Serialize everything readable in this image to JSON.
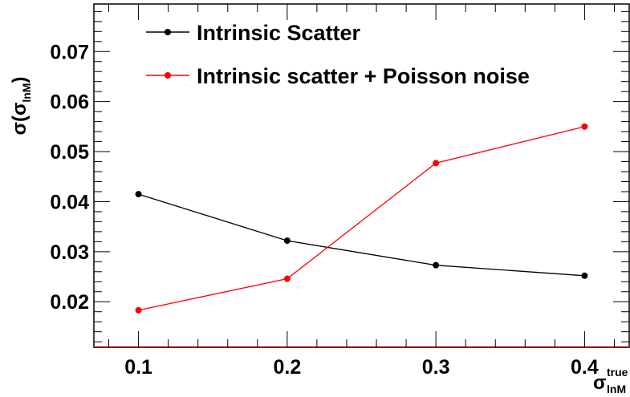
{
  "chart_data": {
    "type": "line",
    "x": [
      0.1,
      0.2,
      0.3,
      0.4
    ],
    "xlim": [
      0.07,
      0.43
    ],
    "ylim": [
      0.0109,
      0.0795
    ],
    "x_ticks": [
      "0.1",
      "0.2",
      "0.3",
      "0.4"
    ],
    "y_ticks": [
      "0.02",
      "0.03",
      "0.04",
      "0.05",
      "0.06",
      "0.07"
    ],
    "x_tick_values": [
      0.1,
      0.2,
      0.3,
      0.4
    ],
    "y_tick_values": [
      0.02,
      0.03,
      0.04,
      0.05,
      0.06,
      0.07
    ],
    "xlabel": {
      "base": "σ",
      "sup": "true",
      "sub": "lnM"
    },
    "ylabel": {
      "prefix": "σ(σ",
      "sub": "lnM",
      "suffix": ")"
    },
    "grid": false,
    "legend_position": "top-left",
    "series": [
      {
        "name": "Intrinsic Scatter",
        "color": "#000000",
        "values": [
          0.0415,
          0.0322,
          0.0273,
          0.0252
        ]
      },
      {
        "name": "Intrinsic scatter + Poisson noise",
        "color": "#ff0000",
        "values": [
          0.0183,
          0.0246,
          0.0477,
          0.055
        ]
      }
    ]
  }
}
